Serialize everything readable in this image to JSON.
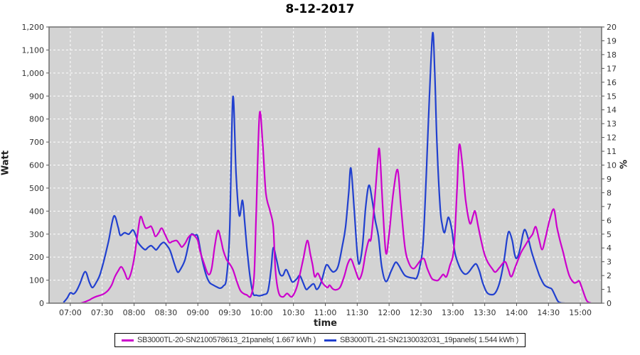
{
  "chart_data": {
    "type": "line",
    "title": "8-12-2017",
    "xlabel": "time",
    "ylabel_left": "Watt",
    "ylabel_right": "%",
    "plot_bg": "#d3d3d3",
    "grid_color": "#ffffff",
    "border_color": "#6e6e6e",
    "tick_color": "#555555",
    "tick_text_color": "#333333",
    "legend_border_color": "#000000",
    "x_domain_minutes": [
      -20,
      500
    ],
    "x_tick_labels": [
      "07:00",
      "07:30",
      "08:00",
      "08:30",
      "09:00",
      "09:30",
      "10:00",
      "10:30",
      "11:00",
      "11:30",
      "12:00",
      "12:30",
      "13:00",
      "13:30",
      "14:00",
      "14:30",
      "15:00"
    ],
    "x_tick_minutes": [
      0,
      30,
      60,
      90,
      120,
      150,
      180,
      210,
      240,
      270,
      300,
      330,
      360,
      390,
      420,
      450,
      480
    ],
    "y_left": {
      "min": 0,
      "max": 1200,
      "step": 100,
      "tick_labels": [
        "0",
        "100",
        "200",
        "300",
        "400",
        "500",
        "600",
        "700",
        "800",
        "900",
        "1,000",
        "1,100",
        "1,200"
      ]
    },
    "y_right": {
      "min": 0,
      "max": 20,
      "step": 1
    },
    "series": [
      {
        "name": "SB3000TL-20-SN2100578613_21panels( 1.667 kWh )",
        "color": "#cc00cc",
        "points": [
          [
            10,
            0
          ],
          [
            14,
            6
          ],
          [
            18,
            14
          ],
          [
            21,
            22
          ],
          [
            25,
            30
          ],
          [
            30,
            37
          ],
          [
            33,
            45
          ],
          [
            36,
            58
          ],
          [
            39,
            80
          ],
          [
            42,
            115
          ],
          [
            45,
            140
          ],
          [
            48,
            158
          ],
          [
            51,
            135
          ],
          [
            54,
            104
          ],
          [
            57,
            130
          ],
          [
            60,
            192
          ],
          [
            63,
            290
          ],
          [
            66,
            375
          ],
          [
            69,
            345
          ],
          [
            71,
            326
          ],
          [
            74,
            330
          ],
          [
            76,
            334
          ],
          [
            78,
            315
          ],
          [
            80,
            290
          ],
          [
            83,
            305
          ],
          [
            86,
            326
          ],
          [
            89,
            300
          ],
          [
            93,
            264
          ],
          [
            96,
            268
          ],
          [
            100,
            272
          ],
          [
            103,
            255
          ],
          [
            105,
            244
          ],
          [
            108,
            260
          ],
          [
            111,
            285
          ],
          [
            114,
            298
          ],
          [
            117,
            292
          ],
          [
            120,
            272
          ],
          [
            122,
            228
          ],
          [
            126,
            170
          ],
          [
            130,
            125
          ],
          [
            133,
            150
          ],
          [
            136,
            250
          ],
          [
            139,
            316
          ],
          [
            142,
            270
          ],
          [
            144,
            228
          ],
          [
            147,
            190
          ],
          [
            149,
            177
          ],
          [
            153,
            146
          ],
          [
            157,
            90
          ],
          [
            160,
            55
          ],
          [
            163,
            42
          ],
          [
            166,
            36
          ],
          [
            170,
            32
          ],
          [
            173,
            120
          ],
          [
            175,
            400
          ],
          [
            178,
            820
          ],
          [
            181,
            700
          ],
          [
            184,
            480
          ],
          [
            188,
            400
          ],
          [
            191,
            332
          ],
          [
            193,
            146
          ],
          [
            196,
            47
          ],
          [
            200,
            27
          ],
          [
            204,
            42
          ],
          [
            208,
            27
          ],
          [
            211,
            45
          ],
          [
            214,
            84
          ],
          [
            219,
            187
          ],
          [
            223,
            272
          ],
          [
            226,
            210
          ],
          [
            228,
            166
          ],
          [
            230,
            115
          ],
          [
            233,
            130
          ],
          [
            236,
            100
          ],
          [
            238,
            84
          ],
          [
            242,
            68
          ],
          [
            244,
            78
          ],
          [
            247,
            62
          ],
          [
            250,
            58
          ],
          [
            254,
            70
          ],
          [
            258,
            120
          ],
          [
            261,
            170
          ],
          [
            264,
            192
          ],
          [
            267,
            160
          ],
          [
            270,
            120
          ],
          [
            272,
            104
          ],
          [
            275,
            140
          ],
          [
            278,
            220
          ],
          [
            281,
            275
          ],
          [
            283,
            280
          ],
          [
            286,
            420
          ],
          [
            289,
            600
          ],
          [
            291,
            664
          ],
          [
            294,
            420
          ],
          [
            297,
            218
          ],
          [
            300,
            300
          ],
          [
            304,
            480
          ],
          [
            308,
            580
          ],
          [
            311,
            430
          ],
          [
            315,
            239
          ],
          [
            319,
            171
          ],
          [
            323,
            150
          ],
          [
            327,
            170
          ],
          [
            330,
            188
          ],
          [
            333,
            192
          ],
          [
            336,
            150
          ],
          [
            340,
            109
          ],
          [
            343,
            100
          ],
          [
            346,
            99
          ],
          [
            349,
            115
          ],
          [
            351,
            125
          ],
          [
            354,
            115
          ],
          [
            357,
            160
          ],
          [
            361,
            239
          ],
          [
            364,
            500
          ],
          [
            366,
            688
          ],
          [
            369,
            600
          ],
          [
            372,
            450
          ],
          [
            376,
            347
          ],
          [
            379,
            380
          ],
          [
            381,
            399
          ],
          [
            384,
            330
          ],
          [
            387,
            264
          ],
          [
            390,
            210
          ],
          [
            393,
            177
          ],
          [
            397,
            150
          ],
          [
            400,
            135
          ],
          [
            404,
            155
          ],
          [
            409,
            180
          ],
          [
            412,
            150
          ],
          [
            415,
            115
          ],
          [
            419,
            160
          ],
          [
            424,
            218
          ],
          [
            428,
            250
          ],
          [
            432,
            280
          ],
          [
            435,
            300
          ],
          [
            438,
            332
          ],
          [
            441,
            280
          ],
          [
            444,
            233
          ],
          [
            447,
            280
          ],
          [
            451,
            360
          ],
          [
            455,
            408
          ],
          [
            458,
            330
          ],
          [
            461,
            270
          ],
          [
            464,
            218
          ],
          [
            467,
            160
          ],
          [
            470,
            115
          ],
          [
            474,
            89
          ],
          [
            477,
            92
          ],
          [
            479,
            96
          ],
          [
            482,
            60
          ],
          [
            486,
            11
          ],
          [
            490,
            0
          ]
        ]
      },
      {
        "name": "SB3000TL-21-SN2130032031_19panels( 1.544 kWh )",
        "color": "#2140cf",
        "points": [
          [
            -6,
            5
          ],
          [
            -3,
            22
          ],
          [
            0,
            45
          ],
          [
            3,
            40
          ],
          [
            6,
            55
          ],
          [
            9,
            84
          ],
          [
            14,
            137
          ],
          [
            18,
            90
          ],
          [
            21,
            68
          ],
          [
            25,
            95
          ],
          [
            28,
            125
          ],
          [
            32,
            192
          ],
          [
            36,
            270
          ],
          [
            41,
            378
          ],
          [
            45,
            330
          ],
          [
            47,
            295
          ],
          [
            51,
            306
          ],
          [
            55,
            300
          ],
          [
            59,
            318
          ],
          [
            62,
            290
          ],
          [
            64,
            262
          ],
          [
            70,
            233
          ],
          [
            73,
            242
          ],
          [
            76,
            250
          ],
          [
            79,
            238
          ],
          [
            81,
            232
          ],
          [
            85,
            255
          ],
          [
            88,
            264
          ],
          [
            91,
            250
          ],
          [
            94,
            228
          ],
          [
            98,
            170
          ],
          [
            101,
            135
          ],
          [
            104,
            150
          ],
          [
            108,
            190
          ],
          [
            112,
            270
          ],
          [
            114,
            300
          ],
          [
            117,
            295
          ],
          [
            120,
            288
          ],
          [
            124,
            190
          ],
          [
            128,
            120
          ],
          [
            131,
            90
          ],
          [
            134,
            80
          ],
          [
            138,
            70
          ],
          [
            141,
            65
          ],
          [
            144,
            75
          ],
          [
            147,
            110
          ],
          [
            150,
            320
          ],
          [
            153,
            895
          ],
          [
            156,
            560
          ],
          [
            159,
            381
          ],
          [
            162,
            447
          ],
          [
            164,
            360
          ],
          [
            166,
            250
          ],
          [
            169,
            120
          ],
          [
            172,
            42
          ],
          [
            175,
            35
          ],
          [
            178,
            32
          ],
          [
            182,
            37
          ],
          [
            186,
            53
          ],
          [
            189,
            150
          ],
          [
            191,
            241
          ],
          [
            194,
            190
          ],
          [
            197,
            130
          ],
          [
            200,
            120
          ],
          [
            203,
            146
          ],
          [
            206,
            120
          ],
          [
            209,
            92
          ],
          [
            213,
            105
          ],
          [
            216,
            120
          ],
          [
            219,
            90
          ],
          [
            222,
            60
          ],
          [
            225,
            70
          ],
          [
            229,
            84
          ],
          [
            232,
            60
          ],
          [
            236,
            90
          ],
          [
            240,
            156
          ],
          [
            242,
            166
          ],
          [
            245,
            146
          ],
          [
            248,
            136
          ],
          [
            252,
            160
          ],
          [
            256,
            249
          ],
          [
            259,
            330
          ],
          [
            262,
            480
          ],
          [
            264,
            587
          ],
          [
            267,
            420
          ],
          [
            270,
            220
          ],
          [
            272,
            171
          ],
          [
            275,
            250
          ],
          [
            278,
            420
          ],
          [
            281,
            512
          ],
          [
            284,
            450
          ],
          [
            287,
            360
          ],
          [
            290,
            290
          ],
          [
            293,
            160
          ],
          [
            297,
            94
          ],
          [
            302,
            140
          ],
          [
            306,
            177
          ],
          [
            309,
            165
          ],
          [
            312,
            140
          ],
          [
            315,
            120
          ],
          [
            319,
            112
          ],
          [
            323,
            109
          ],
          [
            326,
            110
          ],
          [
            329,
            160
          ],
          [
            332,
            260
          ],
          [
            335,
            560
          ],
          [
            338,
            900
          ],
          [
            341,
            1174
          ],
          [
            343,
            1000
          ],
          [
            345,
            700
          ],
          [
            348,
            420
          ],
          [
            350,
            340
          ],
          [
            352,
            306
          ],
          [
            354,
            340
          ],
          [
            356,
            373
          ],
          [
            359,
            320
          ],
          [
            362,
            218
          ],
          [
            366,
            160
          ],
          [
            369,
            135
          ],
          [
            372,
            126
          ],
          [
            375,
            135
          ],
          [
            379,
            160
          ],
          [
            382,
            170
          ],
          [
            385,
            140
          ],
          [
            388,
            90
          ],
          [
            392,
            47
          ],
          [
            396,
            37
          ],
          [
            400,
            45
          ],
          [
            404,
            90
          ],
          [
            408,
            180
          ],
          [
            411,
            280
          ],
          [
            413,
            311
          ],
          [
            416,
            270
          ],
          [
            418,
            215
          ],
          [
            420,
            195
          ],
          [
            423,
            230
          ],
          [
            426,
            300
          ],
          [
            428,
            319
          ],
          [
            431,
            280
          ],
          [
            434,
            225
          ],
          [
            437,
            180
          ],
          [
            440,
            140
          ],
          [
            442,
            115
          ],
          [
            446,
            80
          ],
          [
            450,
            68
          ],
          [
            453,
            62
          ],
          [
            456,
            35
          ],
          [
            459,
            8
          ],
          [
            462,
            1
          ],
          [
            465,
            0
          ]
        ]
      }
    ],
    "legend": {
      "entries": [
        {
          "label": "SB3000TL-20-SN2100578613_21panels( 1.667 kWh )"
        },
        {
          "label": "SB3000TL-21-SN2130032031_19panels( 1.544 kWh )"
        }
      ]
    }
  }
}
